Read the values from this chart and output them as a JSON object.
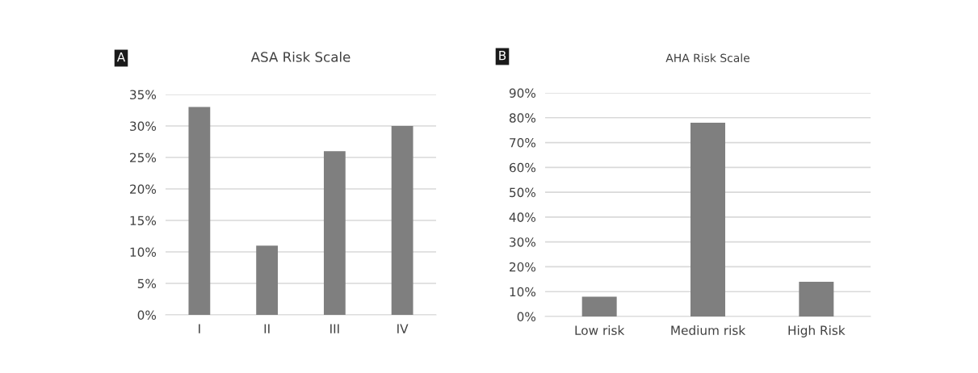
{
  "chart_data": [
    {
      "type": "bar",
      "title": "ASA Risk Scale",
      "categories": [
        "I",
        "II",
        "III",
        "IV"
      ],
      "values": [
        33,
        11,
        26,
        30
      ],
      "color": "#7f7f7f",
      "ylim": [
        0,
        35
      ],
      "yticks": [
        {
          "value": 0,
          "label": "0%"
        },
        {
          "value": 5,
          "label": "5%"
        },
        {
          "value": 10,
          "label": "10%"
        },
        {
          "value": 15,
          "label": "15%"
        },
        {
          "value": 20,
          "label": "20%"
        },
        {
          "value": 25,
          "label": "25%"
        },
        {
          "value": 30,
          "label": "30%"
        },
        {
          "value": 35,
          "label": "35%"
        }
      ],
      "grid": "y",
      "annotations": [
        "A"
      ]
    },
    {
      "type": "bar",
      "title": "AHA Risk Scale",
      "categories": [
        "Low risk",
        "Medium risk",
        "High Risk"
      ],
      "values": [
        8,
        78,
        14
      ],
      "color": "#7f7f7f",
      "ylim": [
        0,
        90
      ],
      "yticks": [
        {
          "value": 0,
          "label": "0%"
        },
        {
          "value": 10,
          "label": "10%"
        },
        {
          "value": 20,
          "label": "20%"
        },
        {
          "value": 30,
          "label": "30%"
        },
        {
          "value": 40,
          "label": "40%"
        },
        {
          "value": 50,
          "label": "50%"
        },
        {
          "value": 60,
          "label": "60%"
        },
        {
          "value": 70,
          "label": "70%"
        },
        {
          "value": 80,
          "label": "80%"
        },
        {
          "value": 90,
          "label": "90%"
        }
      ],
      "grid": "y",
      "annotations": [
        "B"
      ]
    }
  ]
}
